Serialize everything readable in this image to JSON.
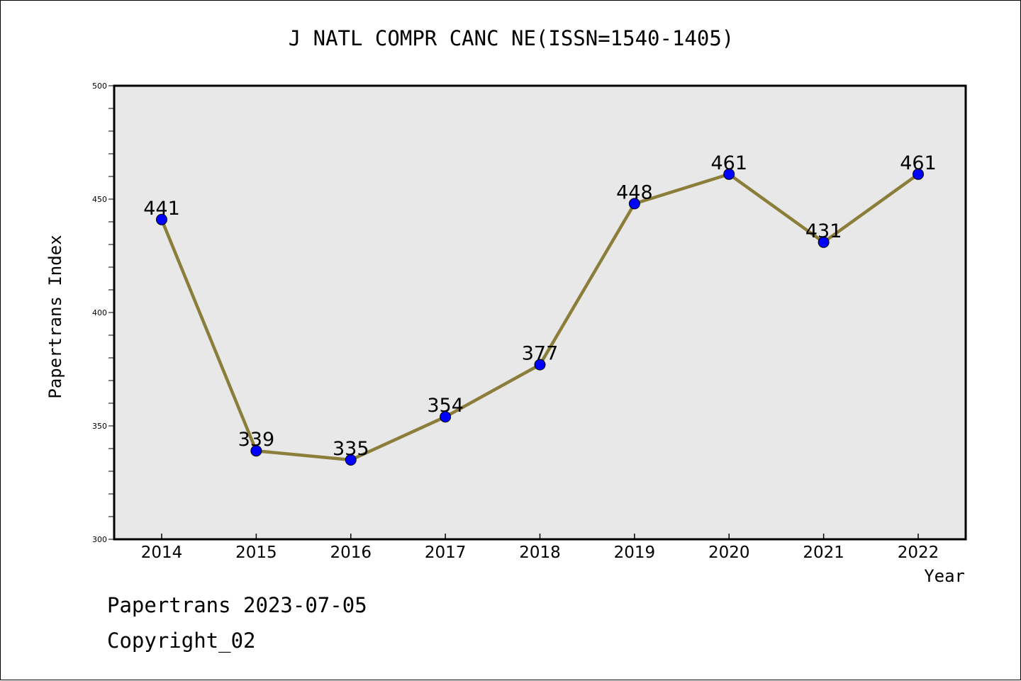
{
  "chart_data": {
    "type": "line",
    "title": "J NATL COMPR CANC NE(ISSN=1540-1405)",
    "xlabel": "Year",
    "ylabel": "Papertrans Index",
    "categories": [
      "2014",
      "2015",
      "2016",
      "2017",
      "2018",
      "2019",
      "2020",
      "2021",
      "2022"
    ],
    "values": [
      441,
      339,
      335,
      354,
      377,
      448,
      461,
      431,
      461
    ],
    "ylim": [
      300,
      500
    ],
    "yticks": [
      "300",
      "350",
      "400",
      "450",
      "500"
    ],
    "grid": false,
    "line_color": "#8B7D3A",
    "marker_color": "#0000FF",
    "plot_bg": "#E8E8E8"
  },
  "footer": {
    "line1": "Papertrans 2023-07-05",
    "line2": "Copyright_02"
  }
}
